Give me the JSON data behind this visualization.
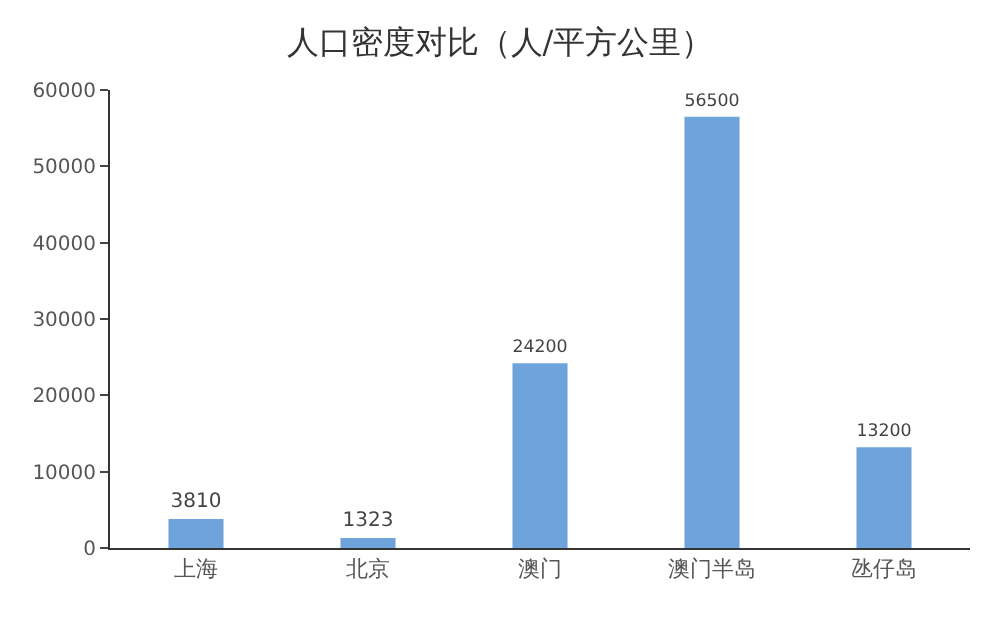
{
  "chart_data": {
    "type": "bar",
    "title": "人口密度对比（人/平方公里）",
    "categories": [
      "上海",
      "北京",
      "澳门",
      "澳门半岛",
      "氹仔岛"
    ],
    "values": [
      3810,
      1323,
      24200,
      56500,
      13200
    ],
    "color": "#6fa3dc",
    "ylim": [
      0,
      60000
    ],
    "yticks": [
      0,
      10000,
      20000,
      30000,
      40000,
      50000,
      60000
    ],
    "grid": false,
    "data_labels": true,
    "legend": false
  }
}
